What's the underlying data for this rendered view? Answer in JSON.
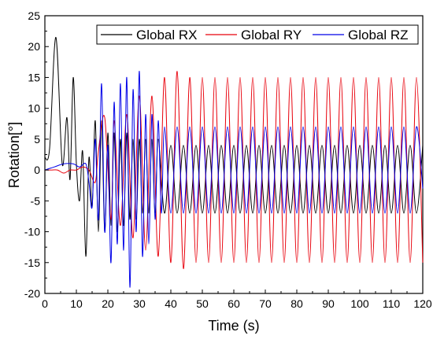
{
  "chart_data": {
    "type": "line",
    "title": "",
    "xlabel": "Time (s)",
    "ylabel": "Rotation[°]",
    "xlim": [
      0,
      120
    ],
    "ylim": [
      -20,
      25
    ],
    "x_ticks": [
      0,
      10,
      20,
      30,
      40,
      50,
      60,
      70,
      80,
      90,
      100,
      110,
      120
    ],
    "y_ticks": [
      -20,
      -15,
      -10,
      -5,
      0,
      5,
      10,
      15,
      20,
      25
    ],
    "x_tick_labels": [
      "0",
      "10",
      "20",
      "30",
      "40",
      "50",
      "60",
      "70",
      "80",
      "90",
      "100",
      "110",
      "120"
    ],
    "y_tick_labels": [
      "-20",
      "-15",
      "-10",
      "-5",
      "0",
      "5",
      "10",
      "15",
      "20",
      "25"
    ],
    "grid": false,
    "legend_position": "top-right",
    "series": [
      {
        "name": "Global RX",
        "color": "#000000",
        "x": [
          0,
          1.5,
          3.5,
          5.5,
          7,
          8,
          9,
          10,
          11,
          12,
          13,
          14,
          15,
          16,
          17,
          18,
          19,
          20,
          21,
          22,
          23,
          24,
          25,
          26,
          27,
          28,
          29,
          30,
          31,
          32,
          33,
          34,
          35,
          36,
          38,
          40,
          42,
          44,
          46,
          48,
          50,
          52,
          54,
          56,
          58,
          60,
          62,
          64,
          66,
          68,
          70,
          72,
          74,
          76,
          78,
          80,
          82,
          84,
          86,
          88,
          90,
          92,
          94,
          96,
          98,
          100,
          102,
          104,
          106,
          108,
          110,
          112,
          114,
          116,
          118,
          120
        ],
        "y": [
          2,
          3.5,
          21.5,
          1,
          8.5,
          -1.5,
          15,
          1,
          -5,
          3,
          -14,
          2,
          -6,
          8,
          -10,
          8,
          -10,
          6,
          -9,
          6,
          -10,
          5,
          -9,
          6,
          -8,
          5,
          -8,
          5,
          -7,
          5,
          -7,
          5,
          -7,
          5,
          -7,
          4,
          -7,
          4,
          -7,
          4,
          -7,
          4,
          -7,
          4,
          -7,
          4,
          -7,
          4,
          -7,
          4,
          -7,
          4,
          -7,
          4,
          -7,
          4,
          -7,
          4,
          -7,
          4,
          -7,
          4,
          -7,
          4,
          -7,
          4,
          -7,
          4,
          -7,
          4,
          -7,
          4,
          -7,
          4,
          -7,
          4
        ]
      },
      {
        "name": "Global RY",
        "color": "#e8000b",
        "x": [
          0,
          2,
          4,
          6,
          8,
          10,
          12,
          14,
          16,
          17,
          19,
          21,
          22,
          24,
          26,
          28,
          30,
          32,
          34,
          36,
          38,
          40,
          42,
          44,
          46,
          48,
          50,
          52,
          54,
          56,
          58,
          60,
          62,
          64,
          66,
          68,
          70,
          72,
          74,
          76,
          78,
          80,
          82,
          84,
          86,
          88,
          90,
          92,
          94,
          96,
          98,
          100,
          102,
          104,
          106,
          108,
          110,
          112,
          114,
          116,
          118,
          120
        ],
        "y": [
          0,
          0,
          0,
          -0.5,
          0,
          0,
          0.5,
          0,
          -2,
          3,
          8.5,
          -8,
          8,
          -9,
          9,
          -11,
          12,
          -13,
          12,
          -14,
          15,
          -15,
          16,
          -16,
          15,
          -15,
          15,
          -15,
          15,
          -15,
          15,
          -15,
          15,
          -15,
          15,
          -15,
          15,
          -15,
          15,
          -15,
          15,
          -15,
          15,
          -15,
          15,
          -15,
          15,
          -15,
          15,
          -15,
          15,
          -15,
          15,
          -15,
          15,
          -15,
          15,
          -15,
          15,
          -15,
          15,
          -15
        ]
      },
      {
        "name": "Global RZ",
        "color": "#0000e8",
        "x": [
          0,
          3,
          6,
          9,
          11,
          13,
          14,
          15,
          16,
          17,
          18,
          19,
          20,
          21,
          22,
          23,
          24,
          25,
          26,
          27,
          28,
          29,
          30,
          31,
          32,
          33,
          34,
          35,
          36,
          37,
          38,
          40,
          42,
          44,
          46,
          48,
          50,
          52,
          54,
          56,
          58,
          60,
          62,
          64,
          66,
          68,
          70,
          72,
          74,
          76,
          78,
          80,
          82,
          84,
          86,
          88,
          90,
          92,
          94,
          96,
          98,
          100,
          102,
          104,
          106,
          108,
          110,
          112,
          114,
          116,
          118,
          120
        ],
        "y": [
          0,
          0.5,
          1,
          1,
          0.5,
          1,
          -2,
          -6,
          5,
          -8,
          14,
          -10,
          4,
          -15,
          11,
          -12,
          14,
          -13,
          15,
          -19,
          13,
          -10,
          16,
          -14,
          9,
          -12,
          9,
          -8,
          8,
          -7,
          7,
          -7,
          7,
          -7,
          7,
          -7,
          7,
          -7,
          7,
          -7,
          7,
          -7,
          7,
          -7,
          7,
          -7,
          7,
          -7,
          7,
          -7,
          7,
          -7,
          7,
          -7,
          7,
          -7,
          7,
          -7,
          7,
          -7,
          7,
          -7,
          7,
          -7,
          7,
          -7,
          7,
          -7,
          7,
          -7,
          7,
          -3
        ]
      }
    ]
  }
}
